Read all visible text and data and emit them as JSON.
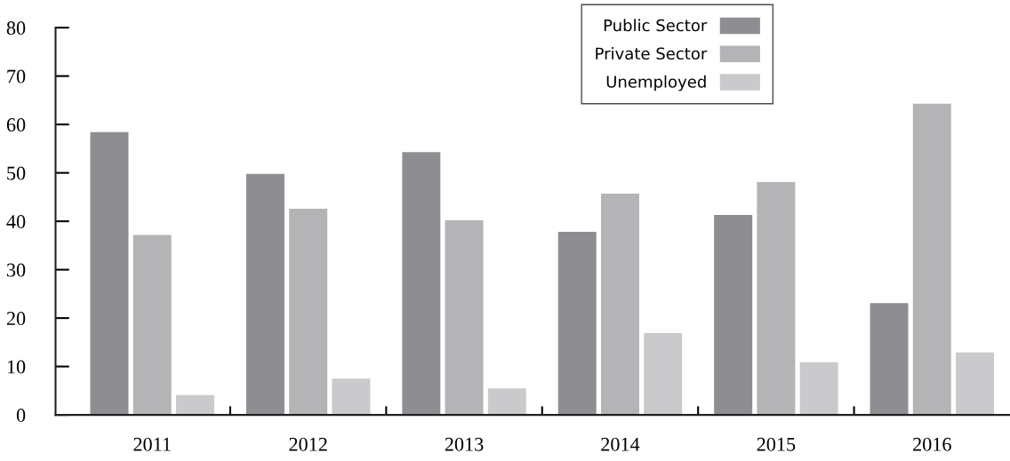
{
  "chart_data": {
    "type": "bar",
    "categories": [
      "2011",
      "2012",
      "2013",
      "2014",
      "2015",
      "2016"
    ],
    "series": [
      {
        "name": "Public Sector",
        "color": "#8e8e92",
        "values": [
          58.4,
          49.8,
          54.3,
          37.8,
          41.3,
          23.1
        ]
      },
      {
        "name": "Private Sector",
        "color": "#b4b4b6",
        "values": [
          37.2,
          42.6,
          40.2,
          45.7,
          48.1,
          64.3
        ]
      },
      {
        "name": "Unemployed",
        "color": "#cacacc",
        "values": [
          4.1,
          7.5,
          5.5,
          16.9,
          10.9,
          12.9
        ]
      }
    ],
    "ylim": [
      0,
      80
    ],
    "yticks": [
      0,
      10,
      20,
      30,
      40,
      50,
      60,
      70,
      80
    ],
    "grid": false,
    "legend": "top right"
  }
}
